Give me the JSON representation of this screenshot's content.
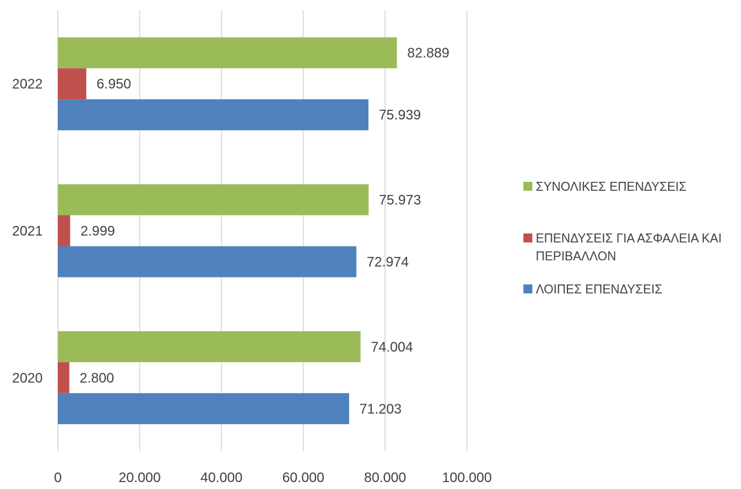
{
  "chart_data": {
    "type": "bar",
    "orientation": "horizontal",
    "categories": [
      "2020",
      "2021",
      "2022"
    ],
    "series": [
      {
        "name": "ΛΟΙΠΕΣ ΕΠΕΝΔΥΣΕΙΣ",
        "color": "#4f81bd",
        "values": [
          71203,
          72974,
          75939
        ],
        "labels": [
          "71.203",
          "72.974",
          "75.939"
        ]
      },
      {
        "name": "ΕΠΕΝΔΥΣΕΙΣ ΓΙΑ ΑΣΦΑΛΕΙΑ ΚΑΙ ΠΕΡΙΒΑΛΛΟΝ",
        "color": "#c0504d",
        "values": [
          2800,
          2999,
          6950
        ],
        "labels": [
          "2.800",
          "2.999",
          "6.950"
        ]
      },
      {
        "name": "ΣΥΝΟΛΙΚΕΣ ΕΠΕΝΔΥΣΕΙΣ",
        "color": "#9bbb59",
        "values": [
          74004,
          75973,
          82889
        ],
        "labels": [
          "74.004",
          "75.973",
          "82.889"
        ]
      }
    ],
    "xlim": [
      0,
      100000
    ],
    "xticks": [
      0,
      20000,
      40000,
      60000,
      80000,
      100000
    ],
    "xtick_labels": [
      "0",
      "20.000",
      "40.000",
      "60.000",
      "80.000",
      "100.000"
    ],
    "grid": true,
    "legend_position": "right",
    "title": "",
    "xlabel": "",
    "ylabel": ""
  }
}
